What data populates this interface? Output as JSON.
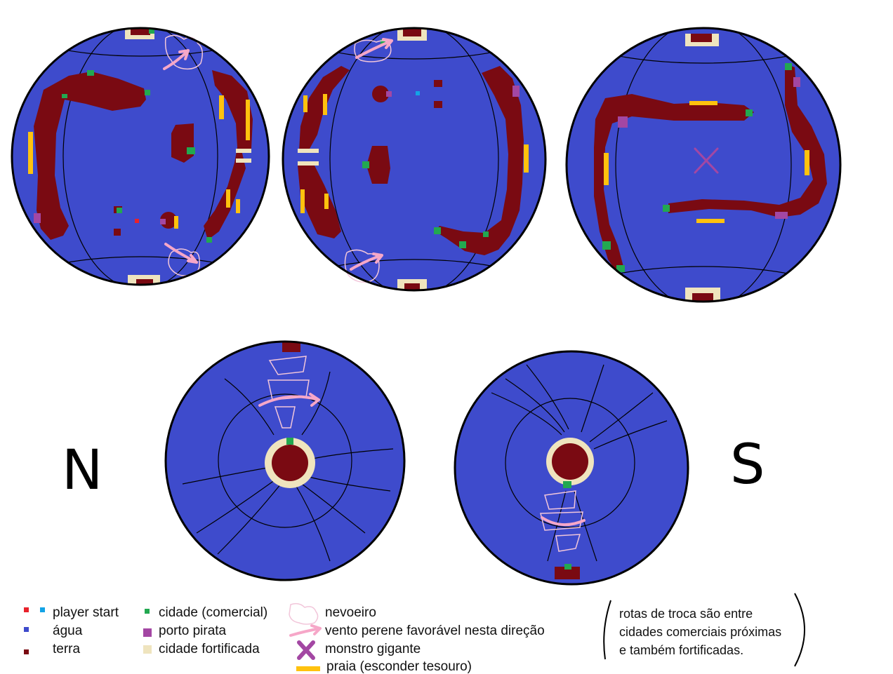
{
  "colors": {
    "water": "#3e4bcc",
    "land": "#7a0a12",
    "fortified": "#efe4be",
    "city": "#22a850",
    "pirate": "#a347a3",
    "beach": "#ffc20e",
    "wind": "#f6a7c8",
    "player_red": "#e8222b",
    "player_blue": "#13a3e6",
    "outline": "#000000"
  },
  "poles": {
    "north": "N",
    "south": "S"
  },
  "legend": {
    "player_start": "player start",
    "water": "água",
    "land": "terra",
    "commercial_city": "cidade (comercial)",
    "pirate_port": "porto pirata",
    "fortified_city": "cidade fortificada",
    "fog": "nevoeiro",
    "wind": "vento perene favorável nesta direção",
    "monster": "monstro gigante",
    "beach": "praia (esconder tesouro)"
  },
  "note": {
    "line1": "rotas de troca são entre",
    "line2": "cidades comerciais próximas",
    "line3": "e também fortificadas."
  }
}
